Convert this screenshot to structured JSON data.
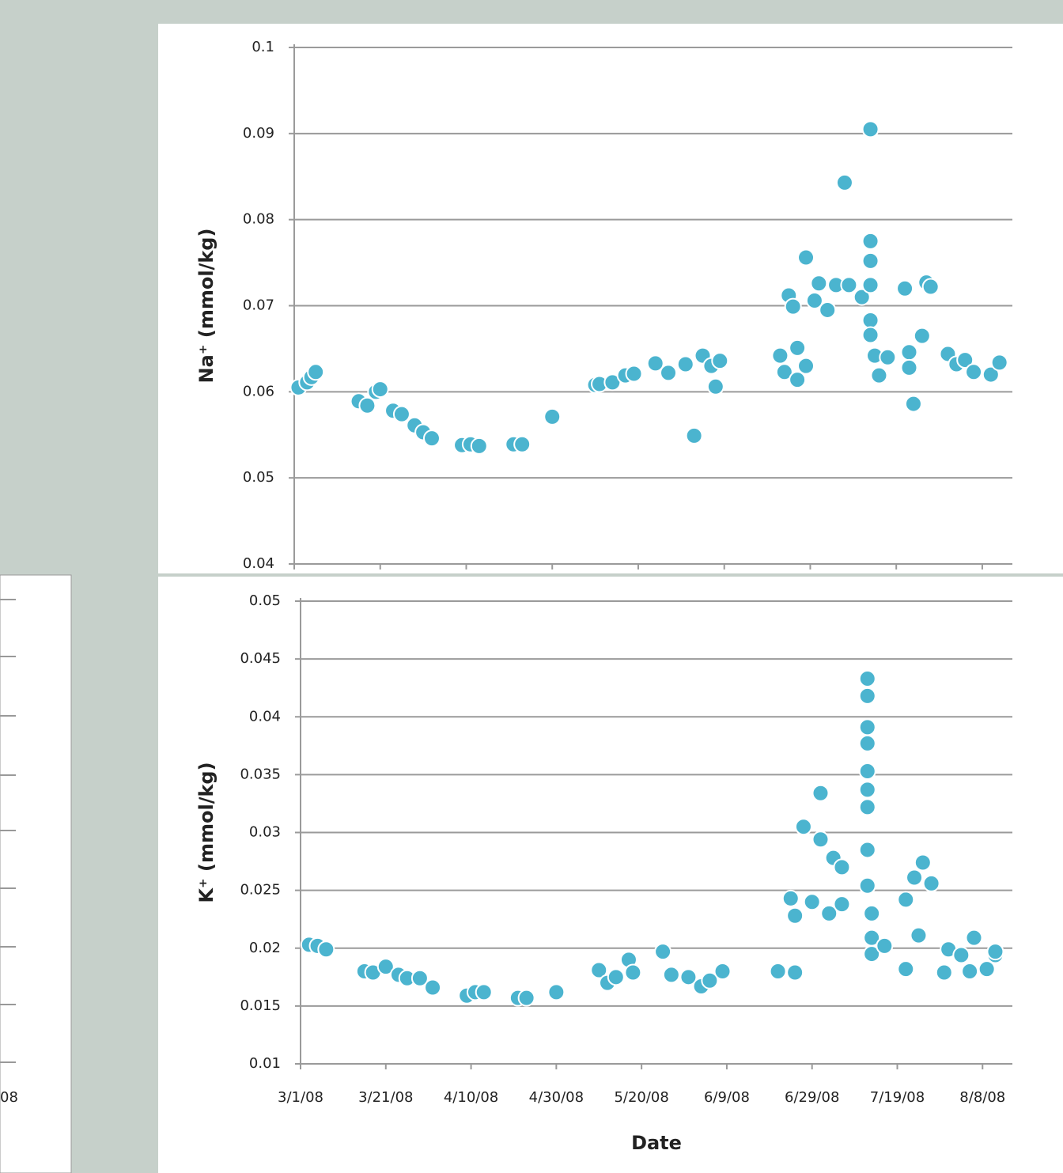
{
  "chart_data": [
    {
      "type": "scatter",
      "y_label": "Na⁺ (mmol/kg)",
      "color": "#4bb4cf",
      "grid": true,
      "x_tick_labels": false,
      "xlim": [
        "3/1/08",
        "8/15/08"
      ],
      "xticks": [
        "3/1/08",
        "3/21/08",
        "4/10/08",
        "4/30/08",
        "5/20/08",
        "6/9/08",
        "6/29/08",
        "7/19/08",
        "8/8/08"
      ],
      "ylim": [
        0.04,
        0.1
      ],
      "yticks": [
        0.1,
        0.09,
        0.08,
        0.07,
        0.06,
        0.05,
        0.04
      ],
      "x": [
        "3/2/08",
        "3/4/08",
        "3/5/08",
        "3/6/08",
        "3/16/08",
        "3/18/08",
        "3/20/08",
        "3/21/08",
        "3/24/08",
        "3/26/08",
        "3/29/08",
        "3/31/08",
        "4/2/08",
        "4/9/08",
        "4/11/08",
        "4/13/08",
        "4/21/08",
        "4/23/08",
        "4/30/08",
        "5/10/08",
        "5/11/08",
        "5/14/08",
        "5/17/08",
        "5/19/08",
        "5/24/08",
        "5/27/08",
        "5/31/08",
        "6/2/08",
        "6/4/08",
        "6/6/08",
        "6/7/08",
        "6/8/08",
        "6/22/08",
        "6/23/08",
        "6/24/08",
        "6/25/08",
        "6/26/08",
        "6/26/08",
        "6/28/08",
        "6/28/08",
        "6/30/08",
        "7/1/08",
        "7/3/08",
        "7/5/08",
        "7/7/08",
        "7/8/08",
        "7/11/08",
        "7/13/08",
        "7/13/08",
        "7/13/08",
        "7/13/08",
        "7/13/08",
        "7/13/08",
        "7/14/08",
        "7/15/08",
        "7/17/08",
        "7/21/08",
        "7/22/08",
        "7/22/08",
        "7/23/08",
        "7/25/08",
        "7/26/08",
        "7/27/08",
        "7/31/08",
        "8/2/08",
        "8/4/08",
        "8/6/08",
        "8/10/08",
        "8/12/08"
      ],
      "values": [
        0.0605,
        0.0611,
        0.0617,
        0.0623,
        0.0589,
        0.0584,
        0.06,
        0.0603,
        0.0578,
        0.0574,
        0.0561,
        0.0553,
        0.0546,
        0.0538,
        0.0539,
        0.0537,
        0.0539,
        0.0539,
        0.0571,
        0.0608,
        0.0609,
        0.0611,
        0.0619,
        0.0621,
        0.0633,
        0.0622,
        0.0632,
        0.0549,
        0.0642,
        0.063,
        0.0606,
        0.0636,
        0.0642,
        0.0623,
        0.0712,
        0.0699,
        0.0651,
        0.0614,
        0.0756,
        0.063,
        0.0706,
        0.0726,
        0.0695,
        0.0724,
        0.0843,
        0.0724,
        0.071,
        0.0905,
        0.0775,
        0.0752,
        0.0724,
        0.0683,
        0.0666,
        0.0642,
        0.0619,
        0.064,
        0.072,
        0.0646,
        0.0628,
        0.0586,
        0.0665,
        0.0727,
        0.0722,
        0.0644,
        0.0632,
        0.0637,
        0.0623,
        0.062,
        0.0634
      ]
    },
    {
      "type": "scatter",
      "y_label": "K⁺ (mmol/kg)",
      "x_label": "Date",
      "color": "#4bb4cf",
      "grid": true,
      "x_tick_labels": true,
      "xlim": [
        "3/1/08",
        "8/15/08"
      ],
      "xticks": [
        "3/1/08",
        "3/21/08",
        "4/10/08",
        "4/30/08",
        "5/20/08",
        "6/9/08",
        "6/29/08",
        "7/19/08",
        "8/8/08"
      ],
      "ylim": [
        0.01,
        0.05
      ],
      "yticks": [
        0.05,
        0.045,
        0.04,
        0.035,
        0.03,
        0.025,
        0.02,
        0.015,
        0.01
      ],
      "x": [
        "3/3/08",
        "3/5/08",
        "3/7/08",
        "3/16/08",
        "3/18/08",
        "3/21/08",
        "3/24/08",
        "3/26/08",
        "3/29/08",
        "4/1/08",
        "4/9/08",
        "4/11/08",
        "4/13/08",
        "4/21/08",
        "4/23/08",
        "4/30/08",
        "5/10/08",
        "5/12/08",
        "5/14/08",
        "5/17/08",
        "5/18/08",
        "5/25/08",
        "5/27/08",
        "5/31/08",
        "6/3/08",
        "6/5/08",
        "6/8/08",
        "6/21/08",
        "6/24/08",
        "6/25/08",
        "6/25/08",
        "6/27/08",
        "6/29/08",
        "7/1/08",
        "7/1/08",
        "7/3/08",
        "7/4/08",
        "7/6/08",
        "7/6/08",
        "7/12/08",
        "7/12/08",
        "7/12/08",
        "7/12/08",
        "7/12/08",
        "7/12/08",
        "7/12/08",
        "7/12/08",
        "7/12/08",
        "7/13/08",
        "7/13/08",
        "7/13/08",
        "7/16/08",
        "7/21/08",
        "7/21/08",
        "7/23/08",
        "7/24/08",
        "7/25/08",
        "7/27/08",
        "7/30/08",
        "7/31/08",
        "8/3/08",
        "8/5/08",
        "8/6/08",
        "8/9/08",
        "8/11/08",
        "8/11/08"
      ],
      "values": [
        0.0203,
        0.0202,
        0.0199,
        0.018,
        0.0179,
        0.0184,
        0.0177,
        0.0174,
        0.0174,
        0.0166,
        0.0159,
        0.0162,
        0.0162,
        0.0157,
        0.0157,
        0.0162,
        0.0181,
        0.017,
        0.0175,
        0.019,
        0.0179,
        0.0197,
        0.0177,
        0.0175,
        0.0167,
        0.0172,
        0.018,
        0.018,
        0.0243,
        0.0228,
        0.0179,
        0.0305,
        0.024,
        0.0334,
        0.0294,
        0.023,
        0.0278,
        0.027,
        0.0238,
        0.0433,
        0.0418,
        0.0391,
        0.0377,
        0.0353,
        0.0337,
        0.0322,
        0.0285,
        0.0254,
        0.023,
        0.0209,
        0.0195,
        0.0202,
        0.0242,
        0.0182,
        0.0261,
        0.0211,
        0.0274,
        0.0256,
        0.0179,
        0.0199,
        0.0194,
        0.018,
        0.0209,
        0.0182,
        0.0194,
        0.0197
      ]
    }
  ],
  "fragment_text": "08"
}
